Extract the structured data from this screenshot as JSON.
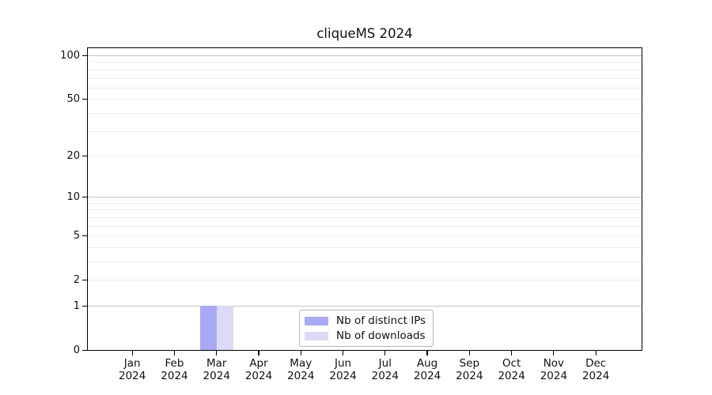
{
  "chart_data": {
    "type": "bar",
    "title": "cliqueMS 2024",
    "categories": [
      "Jan",
      "Feb",
      "Mar",
      "Apr",
      "May",
      "Jun",
      "Jul",
      "Aug",
      "Sep",
      "Oct",
      "Nov",
      "Dec"
    ],
    "x_year": "2024",
    "series": [
      {
        "name": "Nb of distinct IPs",
        "color": "#a9a9f4",
        "values": [
          0,
          0,
          1,
          0,
          0,
          0,
          0,
          0,
          0,
          0,
          0,
          0
        ]
      },
      {
        "name": "Nb of downloads",
        "color": "#dbdbf7",
        "values": [
          0,
          0,
          1,
          0,
          0,
          0,
          0,
          0,
          0,
          0,
          0,
          0
        ]
      }
    ],
    "xlabel": "",
    "ylabel": "",
    "y_scale": "log1p",
    "ylim": [
      0,
      112
    ],
    "y_ticks": [
      0,
      1,
      2,
      5,
      10,
      20,
      50,
      100
    ],
    "y_gridlines_major": [
      1,
      10,
      100
    ],
    "y_gridlines_minor": [
      2,
      3,
      4,
      5,
      6,
      7,
      8,
      9,
      20,
      30,
      40,
      50,
      60,
      70,
      80,
      90
    ],
    "grid": "horizontal",
    "legend_position": "bottom-center",
    "colors": {
      "axis": "#000000",
      "text": "#111111",
      "grid_major": "#c6c6c6",
      "grid_minor": "#ececec",
      "legend_border": "#b5b5b5",
      "background": "#ffffff"
    }
  }
}
